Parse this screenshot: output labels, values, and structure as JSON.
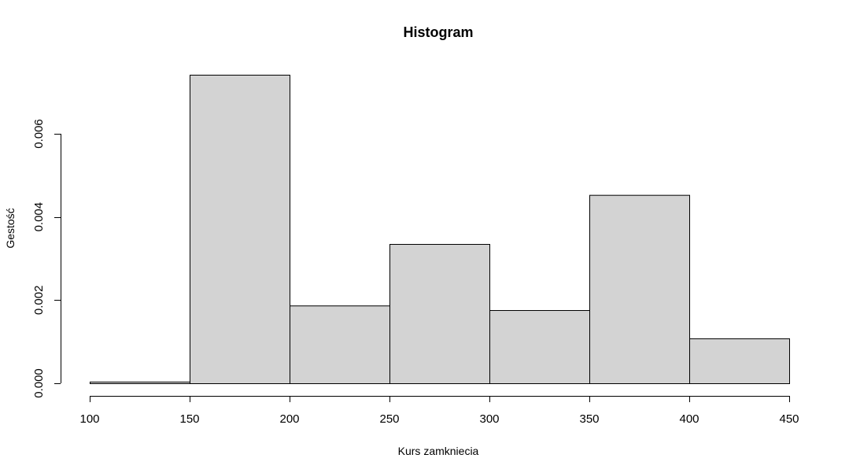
{
  "chart_data": {
    "type": "bar",
    "title": "Histogram",
    "xlabel": "Kurs zamkniecia",
    "ylabel": "Gestość",
    "bins": [
      {
        "x0": 100,
        "x1": 150,
        "density": 4e-05
      },
      {
        "x0": 150,
        "x1": 200,
        "density": 0.00742
      },
      {
        "x0": 200,
        "x1": 250,
        "density": 0.00187
      },
      {
        "x0": 250,
        "x1": 300,
        "density": 0.00335
      },
      {
        "x0": 300,
        "x1": 350,
        "density": 0.00176
      },
      {
        "x0": 350,
        "x1": 400,
        "density": 0.00453
      },
      {
        "x0": 400,
        "x1": 450,
        "density": 0.00108
      }
    ],
    "xlim": [
      100,
      450
    ],
    "ylim": [
      0,
      0.0075
    ],
    "xticks": [
      100,
      150,
      200,
      250,
      300,
      350,
      400,
      450
    ],
    "xtick_labels": [
      "100",
      "150",
      "200",
      "250",
      "300",
      "350",
      "400",
      "450"
    ],
    "yticks": [
      0,
      0.002,
      0.004,
      0.006
    ],
    "ytick_labels": [
      "0.000",
      "0.002",
      "0.004",
      "0.006"
    ],
    "bar_fill": "#d3d3d3",
    "bar_stroke": "#000000",
    "grid": false,
    "legend": "none"
  }
}
